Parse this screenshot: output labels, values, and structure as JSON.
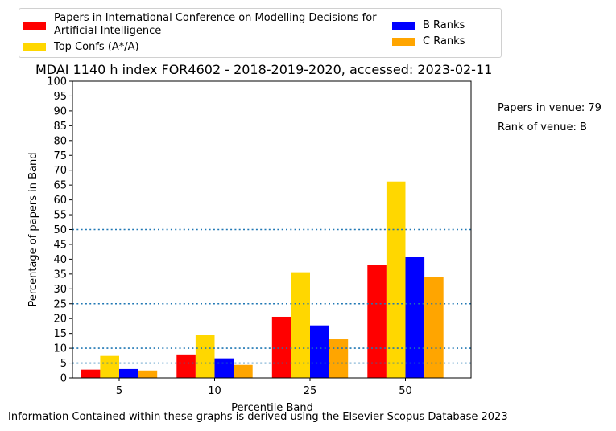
{
  "chart_data": {
    "type": "bar",
    "title": "MDAI 1140 h index FOR4602 - 2018-2019-2020, accessed: 2023-02-11",
    "xlabel": "Percentile Band",
    "ylabel": "Percentage of papers in Band",
    "categories": [
      "5",
      "10",
      "25",
      "50"
    ],
    "ylim": [
      0,
      100
    ],
    "yticks": [
      "0",
      "5",
      "10",
      "15",
      "20",
      "25",
      "30",
      "35",
      "40",
      "45",
      "50",
      "55",
      "60",
      "65",
      "70",
      "75",
      "80",
      "85",
      "90",
      "95",
      "100"
    ],
    "series": [
      {
        "name": "Papers in International Conference on Modelling Decisions for Artificial Intelligence",
        "color": "#ff0000",
        "values": [
          2.8,
          7.9,
          20.6,
          38.1
        ]
      },
      {
        "name": "Top Confs (A*/A)",
        "color": "#ffd700",
        "values": [
          7.4,
          14.4,
          35.6,
          66.2
        ]
      },
      {
        "name": "B Ranks",
        "color": "#0000ff",
        "values": [
          3.0,
          6.6,
          17.7,
          40.7
        ]
      },
      {
        "name": "C Ranks",
        "color": "#ffa500",
        "values": [
          2.5,
          4.4,
          13.0,
          34.0
        ]
      }
    ],
    "reference_lines": [
      5,
      10,
      25,
      50
    ],
    "reference_line_color": "#1f77b4",
    "grid": false,
    "legend_position": "top"
  },
  "legend": {
    "entries": [
      {
        "label_line1": "Papers in International Conference on Modelling Decisions for",
        "label_line2": "Artificial Intelligence",
        "color": "#ff0000"
      },
      {
        "label": "Top Confs (A*/A)",
        "color": "#ffd700"
      },
      {
        "label": "B Ranks",
        "color": "#0000ff"
      },
      {
        "label": "C Ranks",
        "color": "#ffa500"
      }
    ]
  },
  "side_notes": {
    "papers": "Papers in venue: 79",
    "rank": "Rank of venue: B"
  },
  "footer": "Information Contained within these graphs is derived using the Elsevier Scopus Database 2023"
}
